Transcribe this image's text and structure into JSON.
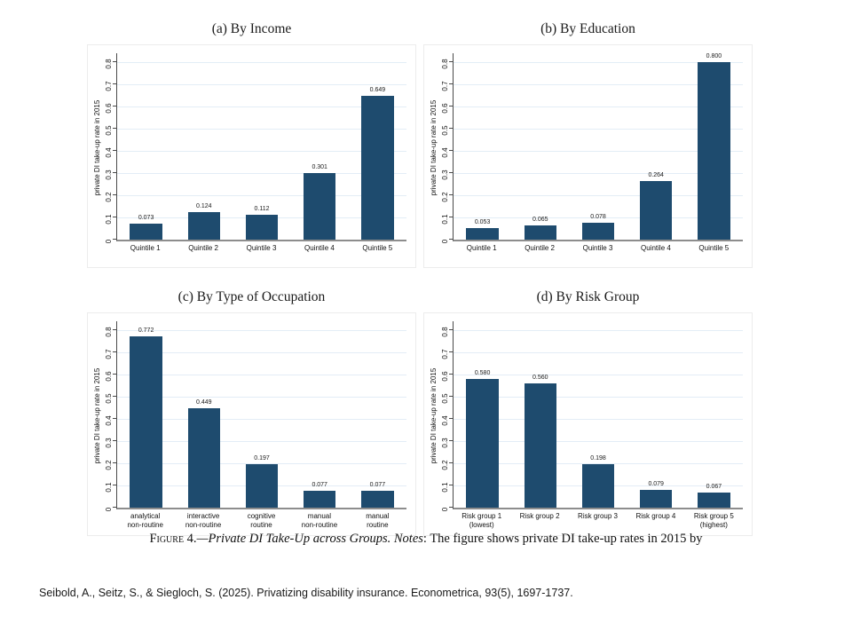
{
  "colors": {
    "bar": "#1e4b6e",
    "gridline": "#e3edf6",
    "axis": "#4a4a4a",
    "baseline": "#8d8d8d"
  },
  "caption": {
    "label": "Figure 4.",
    "title": "—Private DI Take-Up across Groups. ",
    "notes_word": "Notes",
    "rest": ": The figure shows private DI take-up rates in 2015 by"
  },
  "citation": {
    "text": "Seibold, A., Seitz, S., & Siegloch, S. (2025). Privatizing disability insurance. Econometrica, 93(5), 1697-1737."
  },
  "chart_data": [
    {
      "type": "bar",
      "title": "(a) By Income",
      "xlabel": "",
      "ylabel": "private DI take-up rate in 2015",
      "ylim": [
        0,
        0.85
      ],
      "grid": true,
      "legend": "none",
      "yticks": [
        "0",
        "0.1",
        "0.2",
        "0.3",
        "0.4",
        "0.5",
        "0.6",
        "0.7",
        "0.8"
      ],
      "categories": [
        "Quintile 1",
        "Quintile 2",
        "Quintile 3",
        "Quintile 4",
        "Quintile 5"
      ],
      "values": [
        0.073,
        0.124,
        0.112,
        0.301,
        0.649
      ],
      "value_labels": [
        "0.073",
        "0.124",
        "0.112",
        "0.301",
        "0.649"
      ]
    },
    {
      "type": "bar",
      "title": "(b) By Education",
      "xlabel": "",
      "ylabel": "private DI take-up rate in 2015",
      "ylim": [
        0,
        0.85
      ],
      "grid": true,
      "legend": "none",
      "yticks": [
        "0",
        "0.1",
        "0.2",
        "0.3",
        "0.4",
        "0.5",
        "0.6",
        "0.7",
        "0.8"
      ],
      "categories": [
        "Quintile 1",
        "Quintile 2",
        "Quintile 3",
        "Quintile 4",
        "Quintile 5"
      ],
      "values": [
        0.053,
        0.065,
        0.078,
        0.264,
        0.8
      ],
      "value_labels": [
        "0.053",
        "0.065",
        "0.078",
        "0.264",
        "0.800"
      ]
    },
    {
      "type": "bar",
      "title": "(c) By Type of Occupation",
      "xlabel": "",
      "ylabel": "private DI take-up rate in 2015",
      "ylim": [
        0,
        0.85
      ],
      "grid": true,
      "legend": "none",
      "yticks": [
        "0",
        "0.1",
        "0.2",
        "0.3",
        "0.4",
        "0.5",
        "0.6",
        "0.7",
        "0.8"
      ],
      "categories": [
        "analytical\nnon-routine",
        "interactive\nnon-routine",
        "cognitive\nroutine",
        "manual\nnon-routine",
        "manual\nroutine"
      ],
      "values": [
        0.772,
        0.449,
        0.197,
        0.077,
        0.077
      ],
      "value_labels": [
        "0.772",
        "0.449",
        "0.197",
        "0.077",
        "0.077"
      ]
    },
    {
      "type": "bar",
      "title": "(d) By Risk Group",
      "xlabel": "",
      "ylabel": "private DI take-up rate in 2015",
      "ylim": [
        0,
        0.85
      ],
      "grid": true,
      "legend": "none",
      "yticks": [
        "0",
        "0.1",
        "0.2",
        "0.3",
        "0.4",
        "0.5",
        "0.6",
        "0.7",
        "0.8"
      ],
      "categories": [
        "Risk group 1\n(lowest)",
        "Risk group 2",
        "Risk group 3",
        "Risk group 4",
        "Risk group 5\n(highest)"
      ],
      "values": [
        0.58,
        0.56,
        0.198,
        0.079,
        0.067
      ],
      "value_labels": [
        "0.580",
        "0.560",
        "0.198",
        "0.079",
        "0.067"
      ]
    }
  ]
}
